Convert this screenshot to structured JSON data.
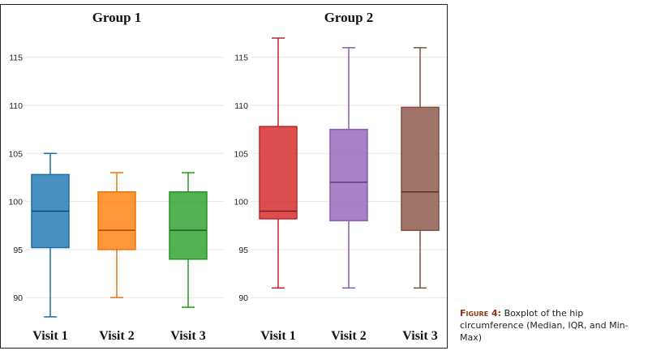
{
  "chart_data": [
    {
      "type": "box",
      "title": "Group 1",
      "categories": [
        "Visit 1",
        "Visit 2",
        "Visit 3"
      ],
      "yticks": [
        90,
        95,
        100,
        105,
        110,
        115
      ],
      "ylim": [
        88,
        118
      ],
      "grid": true,
      "boxes": [
        {
          "name": "Visit 1",
          "min": 88,
          "q1": 95.2,
          "median": 99,
          "q3": 102.8,
          "max": 105,
          "color": "#1f77b4"
        },
        {
          "name": "Visit 2",
          "min": 90,
          "q1": 95,
          "median": 97,
          "q3": 101,
          "max": 103,
          "color": "#ff7f0e"
        },
        {
          "name": "Visit 3",
          "min": 89,
          "q1": 94,
          "median": 97,
          "q3": 101,
          "max": 103,
          "color": "#2ca02c"
        }
      ]
    },
    {
      "type": "box",
      "title": "Group 2",
      "categories": [
        "Visit 1",
        "Visit 2",
        "Visit 3"
      ],
      "yticks": [
        90,
        95,
        100,
        105,
        110,
        115
      ],
      "ylim": [
        88,
        118
      ],
      "grid": true,
      "boxes": [
        {
          "name": "Visit 1",
          "min": 91,
          "q1": 98.2,
          "median": 99,
          "q3": 107.8,
          "max": 117,
          "color": "#d62728"
        },
        {
          "name": "Visit 2",
          "min": 91,
          "q1": 98,
          "median": 102,
          "q3": 107.5,
          "max": 116,
          "color": "#9467bd"
        },
        {
          "name": "Visit 3",
          "min": 91,
          "q1": 97,
          "median": 101,
          "q3": 109.8,
          "max": 116,
          "color": "#8c564b"
        }
      ]
    }
  ],
  "caption": {
    "label": "Figure 4:",
    "text": "Boxplot of the hip circumference (Median, IQR, and Min-Max)"
  }
}
